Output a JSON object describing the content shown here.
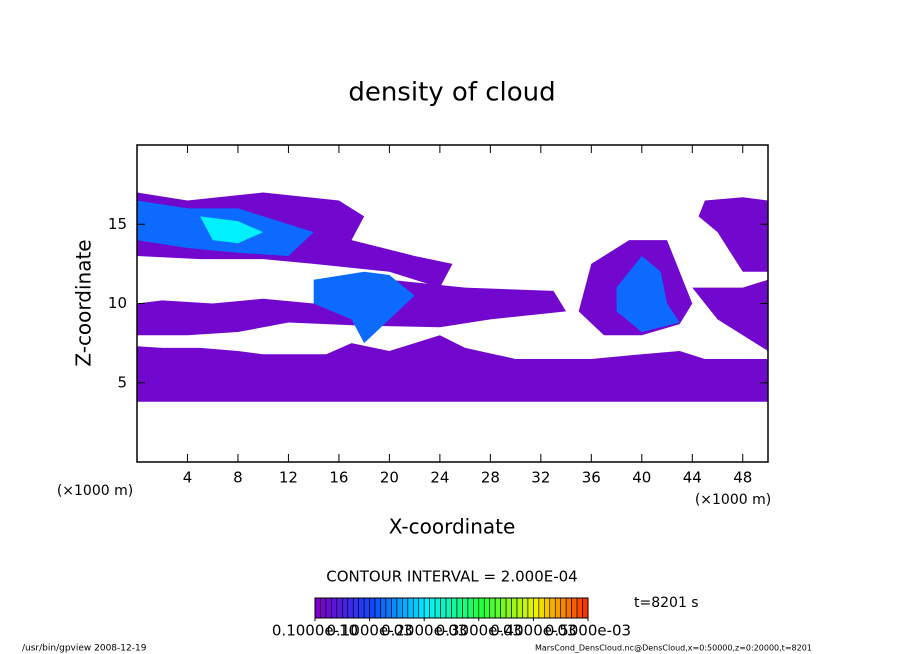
{
  "chart_data": {
    "type": "contour",
    "title": "density of cloud",
    "x_label": "X-coordinate",
    "y_label": "Z-coordinate",
    "x_unit": "(×1000 m)",
    "xlim": [
      0,
      50
    ],
    "xticks": [
      4,
      8,
      12,
      16,
      20,
      24,
      28,
      32,
      36,
      40,
      44,
      48
    ],
    "ylim": [
      0,
      20
    ],
    "yticks": [
      5,
      10,
      15
    ],
    "contour_interval": "CONTOUR INTERVAL = 2.000E-04",
    "time_label": "t=8201 s",
    "colorbar": {
      "levels": [
        {
          "value": 1e-11,
          "label": "0.1000e-10"
        },
        {
          "value": 0.0001,
          "label": "0.1000e-03"
        },
        {
          "value": 0.0002,
          "label": "0.2000e-03"
        },
        {
          "value": 0.0003,
          "label": "0.3000e-03"
        },
        {
          "value": 0.0004,
          "label": "0.4000e-03"
        },
        {
          "value": 0.0005,
          "label": "0.5000e-03"
        }
      ],
      "colors": [
        "#7d00c8",
        "#1048ff",
        "#00f0ff",
        "#20ff40",
        "#f0f000",
        "#ff2000"
      ]
    },
    "regions": [
      {
        "level": 1e-05,
        "x": [
          0,
          50,
          50,
          45,
          43,
          40,
          36,
          30,
          26,
          24,
          22,
          20,
          17,
          15,
          10,
          8,
          5,
          2,
          0
        ],
        "z": [
          3.8,
          3.8,
          6.5,
          6.5,
          7,
          6.8,
          6.5,
          6.5,
          7.2,
          8,
          7.5,
          7,
          7.5,
          6.8,
          6.8,
          7,
          7.2,
          7.2,
          7.3
        ]
      },
      {
        "level": 1e-05,
        "x": [
          0,
          4,
          10,
          16,
          18,
          17,
          22,
          25,
          24,
          20,
          14,
          10,
          5,
          0
        ],
        "z": [
          17,
          16.5,
          17,
          16.5,
          15.5,
          14,
          13,
          12.5,
          11,
          12,
          12.5,
          12.8,
          12.8,
          13
        ]
      },
      {
        "level": 1e-05,
        "x": [
          0,
          2,
          6,
          10,
          14,
          20,
          26,
          33,
          34,
          28,
          24,
          18,
          12,
          8,
          4,
          0
        ],
        "z": [
          10,
          10.2,
          10,
          10.3,
          10,
          11.5,
          11,
          10.8,
          9.5,
          9,
          8.5,
          8.6,
          8.8,
          8.2,
          8,
          8
        ]
      },
      {
        "level": 1e-05,
        "x": [
          35,
          36,
          39,
          42,
          43,
          44,
          43,
          40,
          37
        ],
        "z": [
          9.5,
          12.5,
          14,
          14,
          12,
          10,
          8.7,
          8,
          8
        ]
      },
      {
        "level": 1e-05,
        "x": [
          44.5,
          45,
          48,
          50,
          50,
          48,
          46
        ],
        "z": [
          15.5,
          16.5,
          16.7,
          16.5,
          12,
          12,
          14.5
        ]
      },
      {
        "level": 1e-05,
        "x": [
          44,
          46,
          48,
          50,
          50,
          46
        ],
        "z": [
          11,
          11,
          11,
          11.5,
          7,
          9
        ]
      },
      {
        "level": 0.00012,
        "x": [
          0,
          4,
          8,
          12,
          14,
          12,
          8,
          4,
          0
        ],
        "z": [
          16.5,
          16,
          16,
          15,
          14.5,
          13,
          13.2,
          13.5,
          14
        ]
      },
      {
        "level": 0.0002,
        "x": [
          5,
          8,
          10,
          8,
          6
        ],
        "z": [
          15.5,
          15.2,
          14.5,
          13.8,
          14
        ]
      },
      {
        "level": 0.00012,
        "x": [
          14,
          18,
          20,
          22,
          20,
          18,
          17,
          14
        ],
        "z": [
          11.5,
          12,
          11.8,
          10.5,
          9,
          7.5,
          9,
          10
        ]
      },
      {
        "level": 0.00012,
        "x": [
          38,
          40,
          41.5,
          42,
          43,
          40,
          38
        ],
        "z": [
          11,
          13,
          12,
          10,
          8.8,
          8.2,
          9.5
        ]
      }
    ],
    "footer_left": "/usr/bin/gpview   2008-12-19",
    "footer_right": "MarsCond_DensCloud.nc@DensCloud,x=0:50000,z=0:20000,t=8201"
  }
}
